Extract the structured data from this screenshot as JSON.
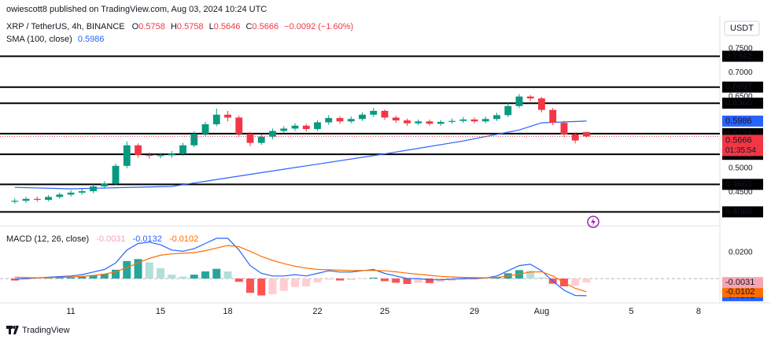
{
  "header": {
    "publisher": "owiescott8 published on TradingView.com, Aug 03, 2024 10:24 UTC",
    "currency": "USDT",
    "countdown": "01:35:54",
    "brand": "TradingView"
  },
  "chart_data": [
    {
      "type": "candlestick",
      "title": "XRP / TetherUS, 4h, BINANCE",
      "ohlc_prefixes": [
        "O",
        "H",
        "L",
        "C"
      ],
      "change_label": "−0.0092 (−1.60%)",
      "x": [
        8.5,
        9,
        9.5,
        10,
        10.5,
        11,
        11.5,
        12,
        12.5,
        13,
        13.5,
        14,
        14.5,
        15,
        15.5,
        16,
        16.5,
        17,
        17.5,
        18,
        18.5,
        19,
        19.5,
        20,
        20.5,
        21,
        21.5,
        22,
        22.5,
        23,
        23.5,
        24,
        24.5,
        25,
        25.5,
        26,
        26.5,
        27,
        27.5,
        28,
        28.5,
        29,
        29.5,
        30,
        30.5,
        31,
        31.5,
        32,
        32.5,
        33,
        33.5,
        34
      ],
      "open": [
        0.43,
        0.432,
        0.436,
        0.434,
        0.44,
        0.445,
        0.449,
        0.452,
        0.462,
        0.468,
        0.505,
        0.548,
        0.528,
        0.526,
        0.527,
        0.53,
        0.548,
        0.572,
        0.592,
        0.612,
        0.606,
        0.572,
        0.553,
        0.566,
        0.578,
        0.583,
        0.589,
        0.582,
        0.596,
        0.605,
        0.598,
        0.603,
        0.612,
        0.62,
        0.606,
        0.6,
        0.594,
        0.598,
        0.593,
        0.597,
        0.599,
        0.602,
        0.598,
        0.603,
        0.611,
        0.63,
        0.65,
        0.646,
        0.622,
        0.595,
        0.571,
        0.5758
      ],
      "high": [
        0.437,
        0.44,
        0.441,
        0.444,
        0.449,
        0.454,
        0.457,
        0.466,
        0.473,
        0.51,
        0.556,
        0.552,
        0.533,
        0.532,
        0.536,
        0.553,
        0.577,
        0.597,
        0.625,
        0.62,
        0.61,
        0.576,
        0.571,
        0.583,
        0.588,
        0.594,
        0.593,
        0.6,
        0.611,
        0.609,
        0.608,
        0.617,
        0.626,
        0.623,
        0.61,
        0.604,
        0.602,
        0.602,
        0.601,
        0.604,
        0.607,
        0.606,
        0.608,
        0.616,
        0.636,
        0.655,
        0.653,
        0.649,
        0.626,
        0.599,
        0.575,
        0.5758
      ],
      "low": [
        0.426,
        0.428,
        0.43,
        0.431,
        0.436,
        0.441,
        0.445,
        0.448,
        0.458,
        0.465,
        0.5,
        0.522,
        0.52,
        0.521,
        0.522,
        0.526,
        0.544,
        0.567,
        0.588,
        0.598,
        0.566,
        0.546,
        0.549,
        0.561,
        0.573,
        0.578,
        0.577,
        0.578,
        0.591,
        0.593,
        0.594,
        0.599,
        0.607,
        0.601,
        0.595,
        0.589,
        0.59,
        0.589,
        0.589,
        0.593,
        0.595,
        0.594,
        0.594,
        0.599,
        0.607,
        0.626,
        0.64,
        0.617,
        0.59,
        0.565,
        0.552,
        0.5646
      ],
      "close": [
        0.432,
        0.436,
        0.434,
        0.44,
        0.445,
        0.449,
        0.452,
        0.462,
        0.468,
        0.505,
        0.548,
        0.528,
        0.526,
        0.527,
        0.53,
        0.548,
        0.572,
        0.592,
        0.612,
        0.606,
        0.572,
        0.553,
        0.566,
        0.578,
        0.583,
        0.589,
        0.582,
        0.596,
        0.605,
        0.598,
        0.603,
        0.612,
        0.62,
        0.606,
        0.6,
        0.594,
        0.598,
        0.593,
        0.597,
        0.599,
        0.602,
        0.598,
        0.603,
        0.611,
        0.63,
        0.65,
        0.646,
        0.622,
        0.595,
        0.571,
        0.558,
        0.5666
      ],
      "up_color": "#089981",
      "down_color": "#f23645",
      "sma": {
        "name": "SMA (100, close)",
        "color": "#2962ff",
        "x": [
          8.5,
          11,
          15.5,
          18,
          21.5,
          25,
          28.5,
          31,
          32,
          34
        ],
        "values": [
          0.46,
          0.457,
          0.462,
          0.48,
          0.505,
          0.53,
          0.557,
          0.58,
          0.595,
          0.5986
        ]
      },
      "levels": [
        0.7342,
        0.6697,
        {
          "value": 0.636,
          "label": "0.6360"
        },
        0.5724,
        0.5291,
        0.4663,
        0.4088
      ],
      "level_color": "#000000",
      "xlim": [
        7.84,
        39.95
      ],
      "xticks": [
        11,
        15,
        18,
        22,
        25,
        29,
        {
          "value": 32,
          "label": "Aug"
        },
        {
          "value": 36,
          "label": "5"
        },
        {
          "value": 39,
          "label": "8"
        }
      ],
      "ylim": [
        0.383,
        0.786
      ],
      "yticks": [
        {
          "value": 0.75,
          "label": "0.7500"
        },
        {
          "value": 0.7,
          "label": "0.7000"
        },
        {
          "value": 0.65,
          "label": "0.6500"
        },
        {
          "value": 0.5,
          "label": "0.5000"
        },
        {
          "value": 0.45,
          "label": "0.4500"
        }
      ]
    },
    {
      "type": "macd",
      "title": "MACD (12, 26, close)",
      "x": [
        8.5,
        9,
        9.5,
        10,
        10.5,
        11,
        11.5,
        12,
        12.5,
        13,
        13.5,
        14,
        14.5,
        15,
        15.5,
        16,
        16.5,
        17,
        17.5,
        18,
        18.5,
        19,
        19.5,
        20,
        20.5,
        21,
        21.5,
        22,
        22.5,
        23,
        23.5,
        24,
        24.5,
        25,
        25.5,
        26,
        26.5,
        27,
        27.5,
        28,
        28.5,
        29,
        29.5,
        30,
        30.5,
        31,
        31.5,
        32,
        32.5,
        33,
        33.5,
        34
      ],
      "series": [
        {
          "style": "histogram",
          "color": "#f7a5b4",
          "colors": [
            "#26a69a",
            "#b2dfdb",
            "#ff5252",
            "#ffcdd2"
          ],
          "values": [
            -0.0015,
            -0.0007,
            -0.0001,
            0.0003,
            0.0006,
            0.0008,
            0.0014,
            0.0026,
            0.0036,
            0.0068,
            0.0135,
            0.015,
            0.0125,
            0.008,
            0.003,
            0.0015,
            0.003,
            0.0055,
            0.0075,
            0.0055,
            -0.0025,
            -0.011,
            -0.013,
            -0.012,
            -0.0095,
            -0.0065,
            -0.006,
            -0.003,
            -0.0008,
            -0.0015,
            -0.0012,
            -0.0002,
            0.0007,
            -0.002,
            -0.0032,
            -0.0042,
            -0.0033,
            -0.0035,
            -0.0027,
            -0.0017,
            -0.0009,
            -0.0007,
            -0.0001,
            0.0011,
            0.0041,
            0.0065,
            0.006,
            0.0008,
            -0.004,
            -0.006,
            -0.0055,
            -0.0031
          ]
        },
        {
          "style": "line",
          "color": "#2962ff",
          "values": [
            -0.0005,
            0,
            0.0005,
            0.001,
            0.0015,
            0.002,
            0.003,
            0.005,
            0.007,
            0.012,
            0.022,
            0.027,
            0.028,
            0.026,
            0.022,
            0.021,
            0.023,
            0.027,
            0.031,
            0.031,
            0.022,
            0.01,
            0.004,
            0.002,
            0.002,
            0.003,
            0.002,
            0.004,
            0.006,
            0.005,
            0.005,
            0.006,
            0.007,
            0.004,
            0.002,
            0,
            0,
            -0.001,
            -0.001,
            -0.0005,
            0,
            0,
            0.0005,
            0.002,
            0.006,
            0.01,
            0.011,
            0.006,
            -0.002,
            -0.009,
            -0.013,
            -0.0132
          ]
        },
        {
          "style": "line",
          "color": "#ff6d00",
          "values": [
            0.001,
            0.0007,
            0.0006,
            0.0007,
            0.0009,
            0.0012,
            0.0016,
            0.0024,
            0.0034,
            0.0052,
            0.0085,
            0.012,
            0.0155,
            0.018,
            0.019,
            0.0195,
            0.02,
            0.0215,
            0.0235,
            0.0255,
            0.0245,
            0.021,
            0.017,
            0.014,
            0.0115,
            0.0095,
            0.008,
            0.007,
            0.0068,
            0.0065,
            0.0062,
            0.0062,
            0.0063,
            0.006,
            0.0052,
            0.0042,
            0.0033,
            0.0025,
            0.0017,
            0.0012,
            0.0009,
            0.0007,
            0.0006,
            0.0009,
            0.0019,
            0.0035,
            0.005,
            0.0052,
            0.002,
            -0.003,
            -0.0075,
            -0.0102
          ]
        }
      ],
      "xlim": [
        7.84,
        39.95
      ],
      "ylim": [
        -0.0175,
        0.0388
      ],
      "yticks": [
        {
          "value": 0.02,
          "label": "0.0200"
        }
      ]
    }
  ]
}
